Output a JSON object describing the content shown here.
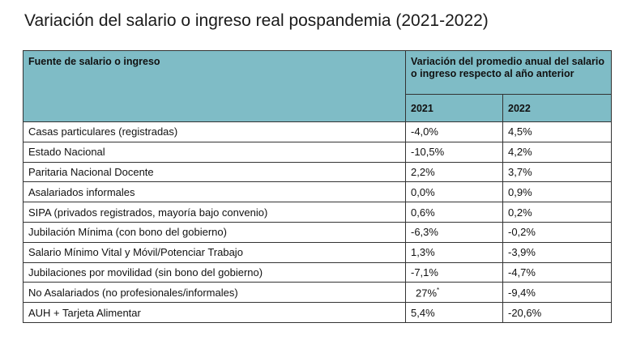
{
  "title": "Variación del salario o ingreso real pospandemia (2021-2022)",
  "table": {
    "header_source": "Fuente de salario o ingreso",
    "header_variation": "Variación del promedio anual del salario o ingreso respecto al año anterior",
    "year_2021": "2021",
    "year_2022": "2022",
    "rows": [
      {
        "source": "Casas particulares (registradas)",
        "v2021": "-4,0%",
        "v2022": "4,5%"
      },
      {
        "source": "Estado Nacional",
        "v2021": "-10,5%",
        "v2022": "4,2%"
      },
      {
        "source": "Paritaria Nacional Docente",
        "v2021": "2,2%",
        "v2022": "3,7%"
      },
      {
        "source": "Asalariados informales",
        "v2021": "0,0%",
        "v2022": "0,9%"
      },
      {
        "source": "SIPA (privados registrados, mayoría bajo convenio)",
        "v2021": "0,6%",
        "v2022": "0,2%"
      },
      {
        "source": "Jubilación Mínima (con bono del gobierno)",
        "v2021": "-6,3%",
        "v2022": "-0,2%"
      },
      {
        "source": "Salario Mínimo Vital y Móvil/Potenciar Trabajo",
        "v2021": "1,3%",
        "v2022": "-3,9%"
      },
      {
        "source": "Jubilaciones por movilidad (sin bono del gobierno)",
        "v2021": "-7,1%",
        "v2022": "-4,7%"
      },
      {
        "source": "No Asalariados (no profesionales/informales)",
        "v2021": "27%",
        "v2021_mark": "*",
        "v2022": "-9,4%"
      },
      {
        "source": "AUH + Tarjeta Alimentar",
        "v2021": "5,4%",
        "v2022": "-20,6%"
      }
    ]
  }
}
